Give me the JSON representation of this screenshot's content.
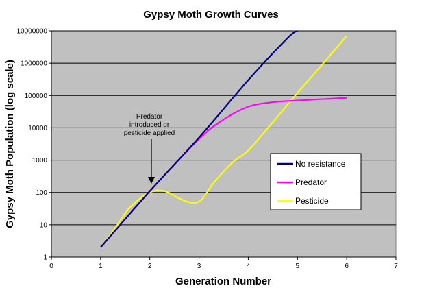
{
  "chart_data": {
    "type": "line",
    "title": "Gypsy Moth Growth Curves",
    "xlabel": "Generation Number",
    "ylabel": "Gypsy Moth Population (log scale)",
    "xlim": [
      0,
      7
    ],
    "ylim": [
      1,
      10000000
    ],
    "y_scale": "log",
    "grid": "horizontal",
    "legend_position": "right",
    "x_ticks": [
      "0",
      "1",
      "2",
      "3",
      "4",
      "5",
      "6",
      "7"
    ],
    "y_ticks": [
      "1",
      "10",
      "100",
      "1000",
      "10000",
      "100000",
      "1000000",
      "10000000"
    ],
    "annotation": {
      "lines": [
        "Predator",
        "introduced or",
        "pesticide applied"
      ],
      "target": [
        2,
        100
      ]
    },
    "series": [
      {
        "name": "No resistance",
        "color": "#000080",
        "points": [
          [
            1,
            2
          ],
          [
            2,
            110
          ],
          [
            3,
            5000
          ],
          [
            4,
            300000
          ],
          [
            4.8,
            6000000
          ],
          [
            5,
            10000000
          ]
        ]
      },
      {
        "name": "Predator",
        "color": "#ff00ff",
        "points": [
          [
            1,
            2
          ],
          [
            2,
            110
          ],
          [
            3,
            4500
          ],
          [
            3.5,
            18000
          ],
          [
            4,
            45000
          ],
          [
            4.5,
            62000
          ],
          [
            5,
            70000
          ],
          [
            6,
            85000
          ]
        ]
      },
      {
        "name": "Pesticide",
        "color": "#ffff00",
        "points": [
          [
            1,
            2
          ],
          [
            1.3,
            8
          ],
          [
            1.6,
            35
          ],
          [
            2,
            100
          ],
          [
            2.3,
            110
          ],
          [
            2.6,
            65
          ],
          [
            2.85,
            48
          ],
          [
            3.05,
            60
          ],
          [
            3.3,
            200
          ],
          [
            3.7,
            900
          ],
          [
            4,
            2000
          ],
          [
            4.5,
            15000
          ],
          [
            5,
            120000
          ],
          [
            5.5,
            900000
          ],
          [
            6,
            7000000
          ]
        ]
      }
    ]
  }
}
